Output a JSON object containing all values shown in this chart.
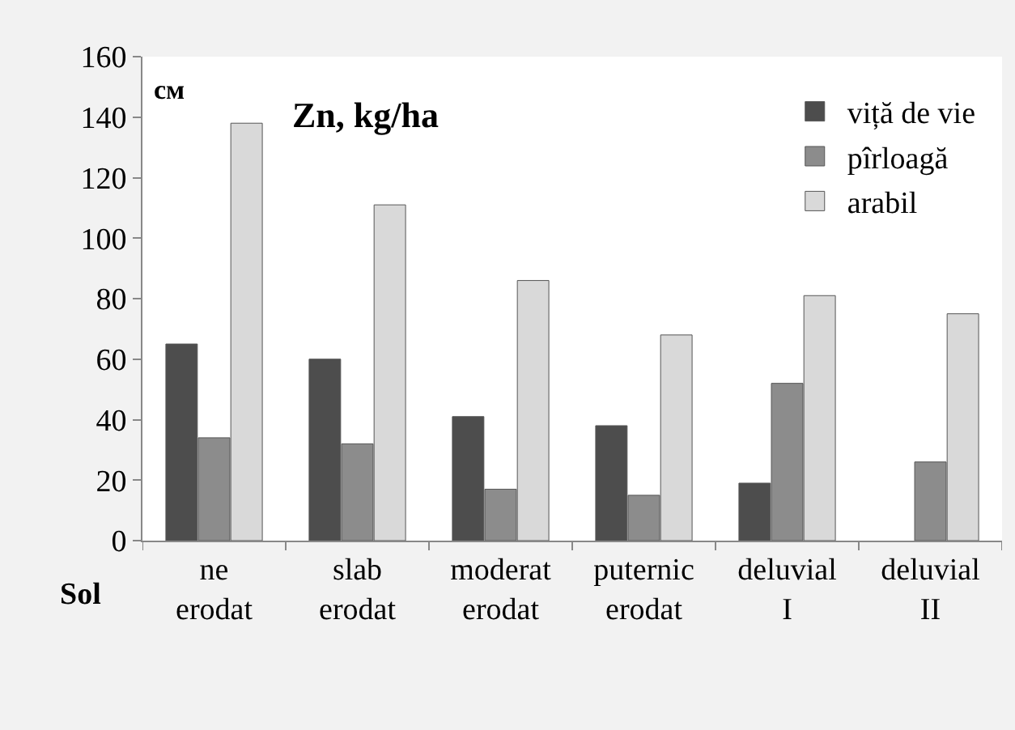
{
  "chart_data": {
    "type": "bar",
    "title": "Zn, kg/ha",
    "xlabel": "Sol",
    "annotations": [
      "см"
    ],
    "categories": [
      "ne\nerodat",
      "slab\nerodat",
      "moderat\nerodat",
      "puternic\nerodat",
      "deluvial\nI",
      "deluvial\nII"
    ],
    "series": [
      {
        "name": "viță de vie",
        "color": "#4d4d4d",
        "values": [
          65,
          60,
          41,
          38,
          19,
          null
        ]
      },
      {
        "name": "pîrloagă",
        "color": "#8c8c8c",
        "values": [
          34,
          32,
          17,
          15,
          52,
          26
        ]
      },
      {
        "name": "arabil",
        "color": "#d9d9d9",
        "values": [
          138,
          111,
          86,
          68,
          81,
          75
        ]
      }
    ],
    "ylim": [
      0,
      160
    ],
    "yticks": [
      0,
      20,
      40,
      60,
      80,
      100,
      120,
      140,
      160
    ],
    "legend": "top right"
  }
}
